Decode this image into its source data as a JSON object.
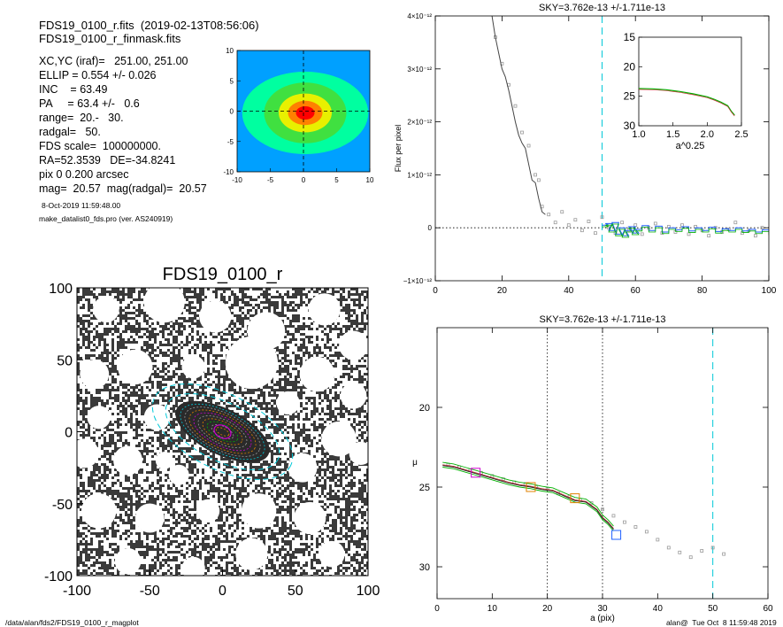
{
  "info": {
    "file_line": "FDS19_0100_r.fits  (2019-02-13T08:56:06)",
    "mask_line": "FDS19_0100_r_finmask.fits",
    "lines": [
      "XC,YC (iraf)=   251.00, 251.00",
      "ELLIP = 0.554 +/- 0.026",
      "INC    = 63.49",
      "PA     = 63.4 +/-   0.6",
      "range=  20.-   30.",
      "radgal=   50.",
      "FDS scale=  100000000.",
      "RA=52.3539   DE=-34.8241",
      "pix 0 0.200 arcsec",
      "mag=  20.57  mag(radgal)=  20.57"
    ],
    "date": "8-Oct-2019 11:59:48.00",
    "program": "make_datalist0_fds.pro (ver. AS240919)"
  },
  "footer": {
    "path": "/data/alan/fds2/FDS19_0100_r_magplot",
    "stamp": "alan@  Tue Oct  8 11:59:48 2019"
  },
  "colors": {
    "cyan": "#00c8d8",
    "magenta": "#d000d0",
    "orange": "#e08000",
    "green": "#00b000",
    "blue": "#2060ff",
    "gray": "#999999"
  },
  "chart_data": [
    {
      "id": "contour",
      "type": "heatmap",
      "title": "",
      "xlim": [
        -10,
        10
      ],
      "ylim": [
        -10,
        10
      ],
      "xticks": [
        "-10",
        "-5",
        "0",
        "5",
        "10"
      ],
      "yticks": [
        "-10",
        "-5",
        "0",
        "5",
        "10"
      ],
      "levels": [
        "#00a0ff",
        "#00ffa0",
        "#40e040",
        "#e8f000",
        "#ff8000",
        "#ff0000"
      ]
    },
    {
      "id": "image",
      "type": "heatmap",
      "title": "FDS19_0100_r",
      "xlim": [
        -100,
        100
      ],
      "ylim": [
        -100,
        100
      ],
      "xticks": [
        "-100",
        "-50",
        "0",
        "50",
        "100"
      ],
      "yticks": [
        "-100",
        "-50",
        "0",
        "50",
        "100"
      ],
      "ellipse_pa_deg": 63.4,
      "ellipse_ellip": 0.554
    },
    {
      "id": "flux",
      "type": "line",
      "title": "SKY=3.762e-13 +/-1.711e-13",
      "xlabel": "",
      "ylabel": "Flux per pixel",
      "xlim": [
        0,
        100
      ],
      "ylim": [
        -1.0,
        4.0
      ],
      "y_unit": "1e-12",
      "xticks": [
        "0",
        "20",
        "40",
        "60",
        "80",
        "100"
      ],
      "yticks": [
        {
          "v": 4,
          "label": "4×10⁻¹²"
        },
        {
          "v": 3,
          "label": "3×10⁻¹²"
        },
        {
          "v": 2,
          "label": "2×10⁻¹²"
        },
        {
          "v": 1,
          "label": "1×10⁻¹²"
        },
        {
          "v": 0,
          "label": "0"
        },
        {
          "v": -1,
          "label": "−1×10⁻¹²"
        }
      ],
      "vline": 50,
      "hline": 0,
      "series": [
        {
          "x": [
            17,
            18,
            19,
            20,
            21,
            22,
            23,
            24,
            25,
            26,
            27,
            28,
            29,
            30,
            31,
            32,
            33
          ],
          "y": [
            4.0,
            3.6,
            3.3,
            3.0,
            2.85,
            2.6,
            2.3,
            2.0,
            1.75,
            1.6,
            1.5,
            1.2,
            0.9,
            0.85,
            0.55,
            0.3,
            0.25
          ]
        },
        {
          "x": [
            50,
            51,
            52,
            53,
            54,
            55,
            56,
            57,
            58,
            59,
            60,
            62,
            64,
            66,
            68,
            70,
            72,
            74,
            76,
            78,
            80,
            82,
            84,
            86,
            88,
            90,
            92,
            94,
            96,
            98,
            100
          ],
          "y": [
            0.05,
            0.08,
            -0.05,
            0.1,
            -0.12,
            0.0,
            -0.15,
            -0.05,
            0.02,
            -0.1,
            -0.03,
            0.04,
            -0.05,
            0.03,
            -0.08,
            0.0,
            -0.04,
            0.02,
            -0.06,
            0.0,
            -0.05,
            0.01,
            -0.07,
            -0.02,
            -0.05,
            0.0,
            -0.06,
            -0.03,
            -0.08,
            -0.04,
            -0.1
          ]
        }
      ],
      "points": {
        "x": [
          18,
          20,
          22,
          24,
          26,
          28,
          30,
          31,
          32,
          34,
          36,
          38,
          40,
          42,
          44,
          46,
          48,
          50,
          52,
          54,
          56,
          58,
          60,
          62,
          64,
          66,
          68,
          70,
          72,
          74,
          76,
          78,
          80,
          82,
          84,
          86,
          88,
          90,
          92,
          94,
          96,
          98
        ],
        "y": [
          3.6,
          3.1,
          2.7,
          2.3,
          1.8,
          1.55,
          1.0,
          0.9,
          0.4,
          0.25,
          0.1,
          0.3,
          0.05,
          0.15,
          -0.05,
          0.12,
          -0.1,
          0.2,
          0.0,
          -0.1,
          0.1,
          -0.05,
          0.05,
          -0.12,
          0.0,
          0.08,
          -0.1,
          0.02,
          -0.08,
          0.05,
          -0.12,
          0.02,
          -0.05,
          -0.15,
          0.0,
          -0.08,
          -0.03,
          0.1,
          -0.1,
          -0.05,
          -0.15,
          0.0
        ]
      },
      "inset": {
        "xlabel": "a^0.25",
        "xlim": [
          1.0,
          2.5
        ],
        "ylim": [
          30,
          15
        ],
        "xticks": [
          "1.0",
          "1.5",
          "2.0",
          "2.5"
        ],
        "yticks": [
          {
            "v": 15,
            "label": "15"
          },
          {
            "v": 20,
            "label": "20"
          },
          {
            "v": 25,
            "label": "25"
          },
          {
            "v": 30,
            "label": "30"
          }
        ],
        "x": [
          1.0,
          1.2,
          1.4,
          1.6,
          1.8,
          2.0,
          2.1,
          2.2,
          2.3,
          2.35,
          2.4
        ],
        "y": [
          23.7,
          23.75,
          23.9,
          24.2,
          24.6,
          25.1,
          25.5,
          26.0,
          26.6,
          27.5,
          28.2
        ]
      }
    },
    {
      "id": "mu",
      "type": "line",
      "title": "SKY=3.762e-13 +/-1.711e-13",
      "xlabel": "a (pix)",
      "ylabel": "μ",
      "xlim": [
        0,
        60
      ],
      "ylim": [
        32,
        15
      ],
      "xticks": [
        "0",
        "10",
        "20",
        "30",
        "40",
        "50",
        "60"
      ],
      "yticks": [
        {
          "v": 20,
          "label": "20"
        },
        {
          "v": 25,
          "label": "25"
        },
        {
          "v": 30,
          "label": "30"
        }
      ],
      "vlines_dotted": [
        20,
        30
      ],
      "vline_dashed": 50,
      "series": [
        {
          "name": "",
          "x": [
            1,
            3,
            5,
            7,
            9,
            11,
            13,
            15,
            17,
            19,
            21,
            23,
            25,
            27,
            29,
            30,
            31,
            32
          ],
          "y": [
            23.6,
            23.7,
            23.9,
            24.1,
            24.3,
            24.5,
            24.7,
            24.85,
            24.95,
            25.1,
            25.2,
            25.5,
            25.8,
            25.9,
            26.4,
            26.9,
            27.2,
            27.6
          ]
        }
      ],
      "points": {
        "x": [
          2,
          4,
          6,
          8,
          10,
          12,
          14,
          16,
          18,
          20,
          22,
          24,
          26,
          28,
          30,
          32,
          34,
          36,
          38,
          40,
          42,
          44,
          46,
          48,
          50,
          52
        ],
        "y": [
          23.6,
          23.75,
          23.95,
          24.1,
          24.3,
          24.5,
          24.7,
          24.8,
          25.0,
          25.1,
          25.4,
          25.6,
          25.8,
          26.0,
          26.4,
          26.8,
          27.2,
          27.5,
          27.8,
          28.3,
          28.8,
          29.1,
          29.4,
          29.0,
          28.8,
          29.2
        ]
      },
      "markers": [
        {
          "x": 7,
          "y": 24.1,
          "color": "#d000d0"
        },
        {
          "x": 17,
          "y": 25.0,
          "color": "#e08000"
        },
        {
          "x": 25,
          "y": 25.7,
          "color": "#e08000"
        },
        {
          "x": 32.5,
          "y": 28.0,
          "color": "#2060ff"
        }
      ]
    }
  ]
}
